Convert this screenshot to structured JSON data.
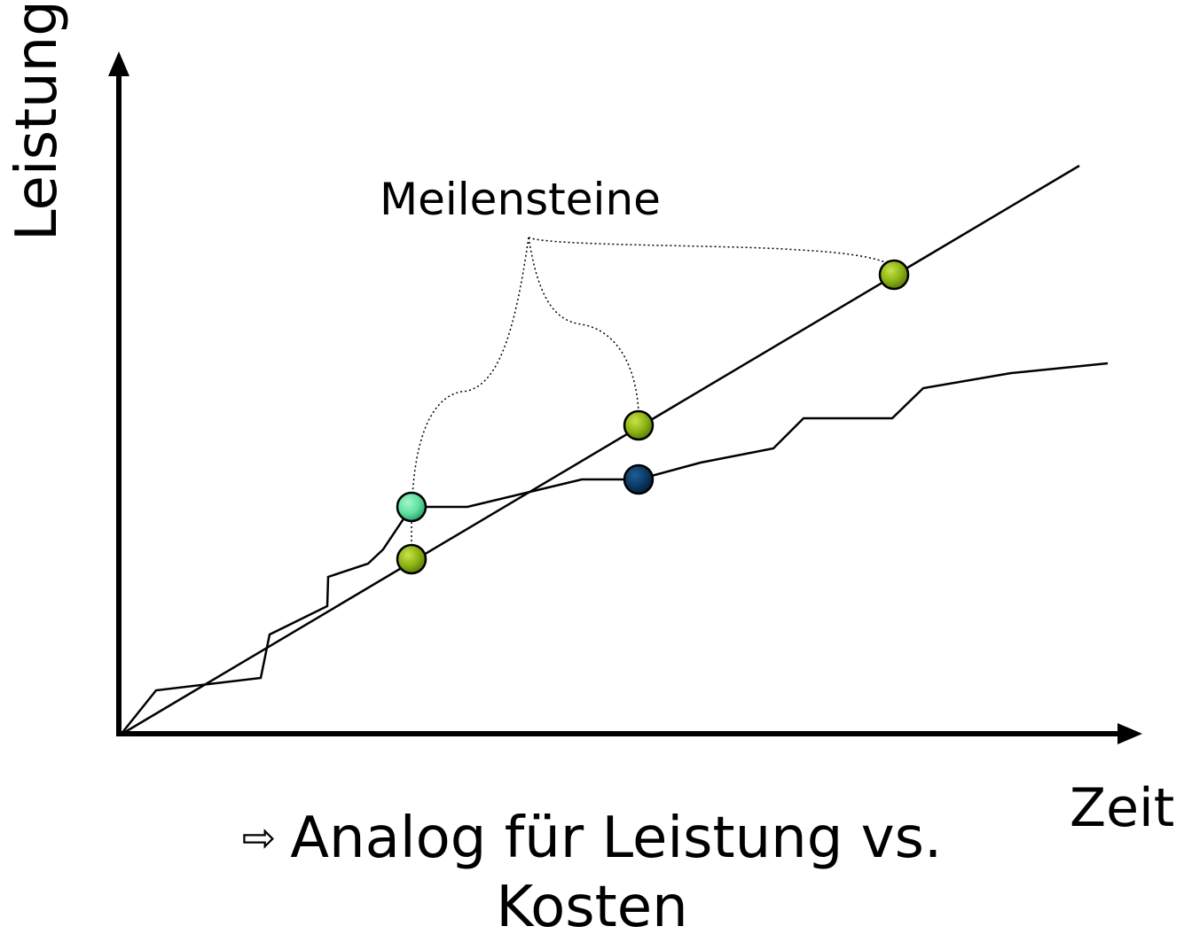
{
  "axes": {
    "y_label": "Leistung",
    "x_label": "Zeit"
  },
  "milestone_label": "Meilensteine",
  "caption": {
    "arrow_icon": "hollow-right-arrow-icon",
    "line1": "Analog für Leistung vs.",
    "line2": "Kosten"
  },
  "colors": {
    "milestone_green": "#8cb314",
    "milestone_teal": "#5fe0a0",
    "milestone_navy": "#0b3a66",
    "line": "#000000"
  }
}
